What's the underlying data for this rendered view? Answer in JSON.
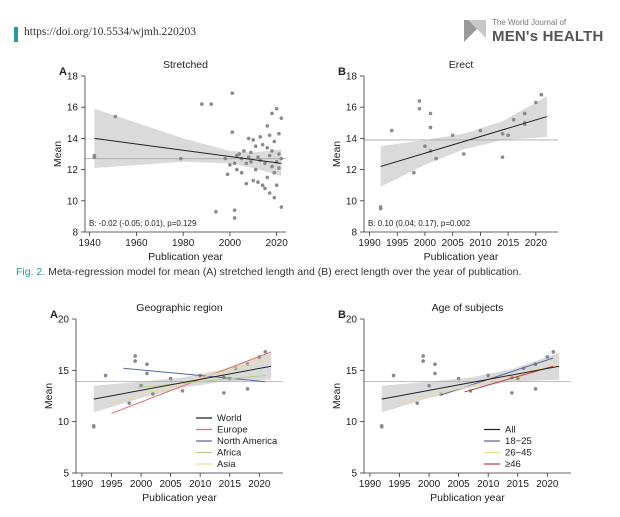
{
  "header": {
    "doi": "https://doi.org/10.5534/wjmh.220203",
    "journal_small": "The World Journal of",
    "journal_big": "MEN's HEALTH"
  },
  "caption": {
    "fig_label": "Fig. 2.",
    "text": "Meta-regression model for mean (A) stretched length and (B) erect length over the year of publication."
  },
  "colors": {
    "band": "#d4d4d4",
    "points": "#8a8a8a",
    "world": "#222222",
    "europe": "#e07070",
    "north_america": "#5566aa",
    "africa": "#b8d08a",
    "asia": "#eedd99",
    "age_18_25": "#5566aa",
    "age_26_45": "#eedd99",
    "age_46": "#c04040",
    "accent": "#1f9aa8"
  },
  "chart_data": [
    {
      "id": "A-top",
      "panel_letter": "A",
      "type": "scatter",
      "title": "Stretched",
      "xlabel": "Publication year",
      "ylabel": "Mean",
      "xlim": [
        1938,
        2024
      ],
      "ylim": [
        8,
        18
      ],
      "xticks": [
        1940,
        1960,
        1980,
        2000,
        2020
      ],
      "yticks": [
        8,
        10,
        12,
        14,
        16,
        18
      ],
      "hline": 12.7,
      "annotation": "B: -0.02 (-0.05; 0.01), p=0.129",
      "regression": {
        "x0": 1942,
        "y0": 14.0,
        "x1": 2022,
        "y1": 12.4
      },
      "band_upper": [
        [
          1942,
          15.9
        ],
        [
          1980,
          14.0
        ],
        [
          2000,
          13.2
        ],
        [
          2010,
          13.1
        ],
        [
          2022,
          13.3
        ]
      ],
      "band_lower": [
        [
          1942,
          12.1
        ],
        [
          1980,
          12.5
        ],
        [
          2000,
          12.4
        ],
        [
          2010,
          12.1
        ],
        [
          2022,
          11.6
        ]
      ],
      "points": [
        [
          1942,
          12.9
        ],
        [
          1942,
          12.8
        ],
        [
          1951,
          15.4
        ],
        [
          1979,
          12.7
        ],
        [
          1988,
          16.2
        ],
        [
          1992,
          16.2
        ],
        [
          1994,
          9.3
        ],
        [
          1998,
          12.7
        ],
        [
          1999,
          11.7
        ],
        [
          2000,
          12.3
        ],
        [
          2001,
          16.9
        ],
        [
          2001,
          14.4
        ],
        [
          2002,
          12.4
        ],
        [
          2002,
          9.4
        ],
        [
          2002,
          8.9
        ],
        [
          2003,
          12.9
        ],
        [
          2003,
          12.0
        ],
        [
          2004,
          13.0
        ],
        [
          2005,
          12.7
        ],
        [
          2005,
          11.8
        ],
        [
          2006,
          13.2
        ],
        [
          2007,
          12.4
        ],
        [
          2007,
          11.1
        ],
        [
          2008,
          12.8
        ],
        [
          2008,
          14.0
        ],
        [
          2009,
          13.1
        ],
        [
          2009,
          12.5
        ],
        [
          2010,
          13.9
        ],
        [
          2010,
          11.3
        ],
        [
          2011,
          12.0
        ],
        [
          2011,
          13.5
        ],
        [
          2012,
          12.8
        ],
        [
          2012,
          11.2
        ],
        [
          2013,
          14.1
        ],
        [
          2013,
          12.6
        ],
        [
          2014,
          13.6
        ],
        [
          2014,
          11.0
        ],
        [
          2015,
          12.4
        ],
        [
          2015,
          10.8
        ],
        [
          2016,
          13.4
        ],
        [
          2016,
          14.8
        ],
        [
          2016,
          11.5
        ],
        [
          2017,
          12.9
        ],
        [
          2017,
          14.2
        ],
        [
          2017,
          10.5
        ],
        [
          2018,
          13.2
        ],
        [
          2018,
          12.2
        ],
        [
          2018,
          15.6
        ],
        [
          2019,
          13.8
        ],
        [
          2019,
          11.8
        ],
        [
          2019,
          10.2
        ],
        [
          2020,
          15.9
        ],
        [
          2020,
          12.5
        ],
        [
          2020,
          11.0
        ],
        [
          2021,
          13.0
        ],
        [
          2021,
          12.1
        ],
        [
          2021,
          14.3
        ],
        [
          2022,
          12.7
        ],
        [
          2022,
          9.6
        ],
        [
          2022,
          15.3
        ]
      ]
    },
    {
      "id": "B-top",
      "panel_letter": "B",
      "type": "scatter",
      "title": "Erect",
      "xlabel": "Publication year",
      "ylabel": "Mean",
      "xlim": [
        1989,
        2024
      ],
      "ylim": [
        8,
        18
      ],
      "xticks": [
        1990,
        1995,
        2000,
        2005,
        2010,
        2015,
        2020
      ],
      "xtick_labels": [
        "1990",
        "1995",
        "2000",
        "2005",
        "2010",
        "2015",
        "2020"
      ],
      "yticks": [
        8,
        10,
        12,
        14,
        16,
        18
      ],
      "hline": 13.9,
      "annotation": "B: 0.10 (0.04; 0.17), p=0.002",
      "regression": {
        "x0": 1992,
        "y0": 12.2,
        "x1": 2022,
        "y1": 15.4
      },
      "band_upper": [
        [
          1992,
          13.5
        ],
        [
          2000,
          13.9
        ],
        [
          2007,
          14.3
        ],
        [
          2014,
          15.1
        ],
        [
          2022,
          16.7
        ]
      ],
      "band_lower": [
        [
          1992,
          10.9
        ],
        [
          2000,
          12.3
        ],
        [
          2007,
          13.3
        ],
        [
          2014,
          13.9
        ],
        [
          2022,
          14.1
        ]
      ],
      "points": [
        [
          1992,
          9.5
        ],
        [
          1992,
          9.6
        ],
        [
          1994,
          14.5
        ],
        [
          1998,
          11.8
        ],
        [
          1999,
          16.4
        ],
        [
          1999,
          15.9
        ],
        [
          2000,
          13.5
        ],
        [
          2001,
          15.6
        ],
        [
          2001,
          14.7
        ],
        [
          2001,
          13.2
        ],
        [
          2002,
          12.7
        ],
        [
          2005,
          14.2
        ],
        [
          2007,
          13.0
        ],
        [
          2010,
          14.5
        ],
        [
          2014,
          12.8
        ],
        [
          2014,
          14.3
        ],
        [
          2015,
          14.2
        ],
        [
          2016,
          15.2
        ],
        [
          2018,
          15.6
        ],
        [
          2018,
          14.9
        ],
        [
          2018,
          15.0
        ],
        [
          2020,
          16.3
        ],
        [
          2021,
          16.8
        ]
      ]
    },
    {
      "id": "A-bottom",
      "panel_letter": "A",
      "type": "scatter",
      "title": "Geographic region",
      "xlabel": "Publication year",
      "ylabel": "Mean",
      "xlim": [
        1989,
        2024
      ],
      "ylim": [
        5,
        20
      ],
      "xticks": [
        1990,
        1995,
        2000,
        2005,
        2010,
        2015,
        2020
      ],
      "xtick_labels": [
        "1990",
        "1995",
        "2000",
        "2005",
        "2010",
        "2015",
        "2020"
      ],
      "yticks": [
        5,
        10,
        15,
        20
      ],
      "hline": 13.9,
      "regression": {
        "x0": 1992,
        "y0": 12.2,
        "x1": 2022,
        "y1": 15.4
      },
      "band_upper": [
        [
          1992,
          13.5
        ],
        [
          2000,
          13.9
        ],
        [
          2007,
          14.3
        ],
        [
          2014,
          15.1
        ],
        [
          2022,
          16.7
        ]
      ],
      "band_lower": [
        [
          1992,
          10.9
        ],
        [
          2000,
          12.3
        ],
        [
          2007,
          13.3
        ],
        [
          2014,
          13.9
        ],
        [
          2022,
          14.1
        ]
      ],
      "lines": [
        {
          "name": "Europe",
          "color": "#e07070",
          "x0": 1995,
          "y0": 10.8,
          "x1": 2022,
          "y1": 16.8
        },
        {
          "name": "North America",
          "color": "#5566aa",
          "x0": 1997,
          "y0": 15.2,
          "x1": 2021,
          "y1": 13.9
        },
        {
          "name": "Africa",
          "color": "#b8d08a",
          "x0": 1999,
          "y0": 13.3,
          "x1": 2021,
          "y1": 14.5
        },
        {
          "name": "Asia",
          "color": "#eedd99",
          "x0": 1995,
          "y0": 11.8,
          "x1": 2022,
          "y1": 16.2
        }
      ],
      "legend": [
        {
          "label": "World",
          "color": "#222222"
        },
        {
          "label": "Europe",
          "color": "#e07070"
        },
        {
          "label": "North America",
          "color": "#5566aa"
        },
        {
          "label": "Africa",
          "color": "#b8d08a"
        },
        {
          "label": "Asia",
          "color": "#eedd99"
        }
      ],
      "legend_position": "bottom-right",
      "points": [
        [
          1992,
          9.5
        ],
        [
          1992,
          9.6
        ],
        [
          1994,
          14.5
        ],
        [
          1998,
          11.8
        ],
        [
          1999,
          16.4
        ],
        [
          1999,
          15.9
        ],
        [
          2000,
          13.5
        ],
        [
          2001,
          15.6
        ],
        [
          2001,
          14.7
        ],
        [
          2002,
          12.7
        ],
        [
          2005,
          14.2
        ],
        [
          2007,
          13.0
        ],
        [
          2010,
          14.5
        ],
        [
          2014,
          12.8
        ],
        [
          2014,
          14.3
        ],
        [
          2015,
          14.2
        ],
        [
          2016,
          15.2
        ],
        [
          2018,
          15.6
        ],
        [
          2018,
          13.2
        ],
        [
          2020,
          16.3
        ],
        [
          2021,
          16.8
        ]
      ]
    },
    {
      "id": "B-bottom",
      "panel_letter": "B",
      "type": "scatter",
      "title": "Age of subjects",
      "xlabel": "Publication year",
      "ylabel": "Mean",
      "xlim": [
        1989,
        2024
      ],
      "ylim": [
        5,
        20
      ],
      "xticks": [
        1990,
        1995,
        2000,
        2005,
        2010,
        2015,
        2020
      ],
      "xtick_labels": [
        "1990",
        "1995",
        "2000",
        "2005",
        "2010",
        "2015",
        "2020"
      ],
      "yticks": [
        5,
        10,
        15,
        20
      ],
      "hline": 13.9,
      "regression": {
        "x0": 1992,
        "y0": 12.2,
        "x1": 2022,
        "y1": 15.4
      },
      "band_upper": [
        [
          1992,
          13.5
        ],
        [
          2000,
          13.9
        ],
        [
          2007,
          14.3
        ],
        [
          2014,
          15.1
        ],
        [
          2022,
          16.7
        ]
      ],
      "band_lower": [
        [
          1992,
          10.9
        ],
        [
          2000,
          12.3
        ],
        [
          2007,
          13.3
        ],
        [
          2014,
          13.9
        ],
        [
          2022,
          14.1
        ]
      ],
      "lines": [
        {
          "name": "18−25",
          "color": "#5566aa",
          "x0": 2002,
          "y0": 12.6,
          "x1": 2021,
          "y1": 16.2
        },
        {
          "name": "26−45",
          "color": "#eedd99",
          "x0": 1995,
          "y0": 11.8,
          "x1": 2022,
          "y1": 15.6
        },
        {
          "name": "≥46",
          "color": "#c04040",
          "x0": 2006,
          "y0": 12.9,
          "x1": 2021,
          "y1": 15.4
        }
      ],
      "legend": [
        {
          "label": "All",
          "color": "#222222"
        },
        {
          "label": "18−25",
          "color": "#5566aa"
        },
        {
          "label": "26−45",
          "color": "#eedd99"
        },
        {
          "label": "≥46",
          "color": "#c04040"
        }
      ],
      "legend_position": "bottom-right",
      "points": [
        [
          1992,
          9.5
        ],
        [
          1992,
          9.6
        ],
        [
          1994,
          14.5
        ],
        [
          1998,
          11.8
        ],
        [
          1999,
          16.4
        ],
        [
          1999,
          15.9
        ],
        [
          2000,
          13.5
        ],
        [
          2001,
          15.6
        ],
        [
          2001,
          14.7
        ],
        [
          2002,
          12.7
        ],
        [
          2005,
          14.2
        ],
        [
          2007,
          13.0
        ],
        [
          2010,
          14.5
        ],
        [
          2014,
          12.8
        ],
        [
          2014,
          14.3
        ],
        [
          2015,
          14.2
        ],
        [
          2016,
          15.2
        ],
        [
          2018,
          15.6
        ],
        [
          2018,
          13.2
        ],
        [
          2020,
          16.3
        ],
        [
          2021,
          16.8
        ]
      ]
    }
  ]
}
